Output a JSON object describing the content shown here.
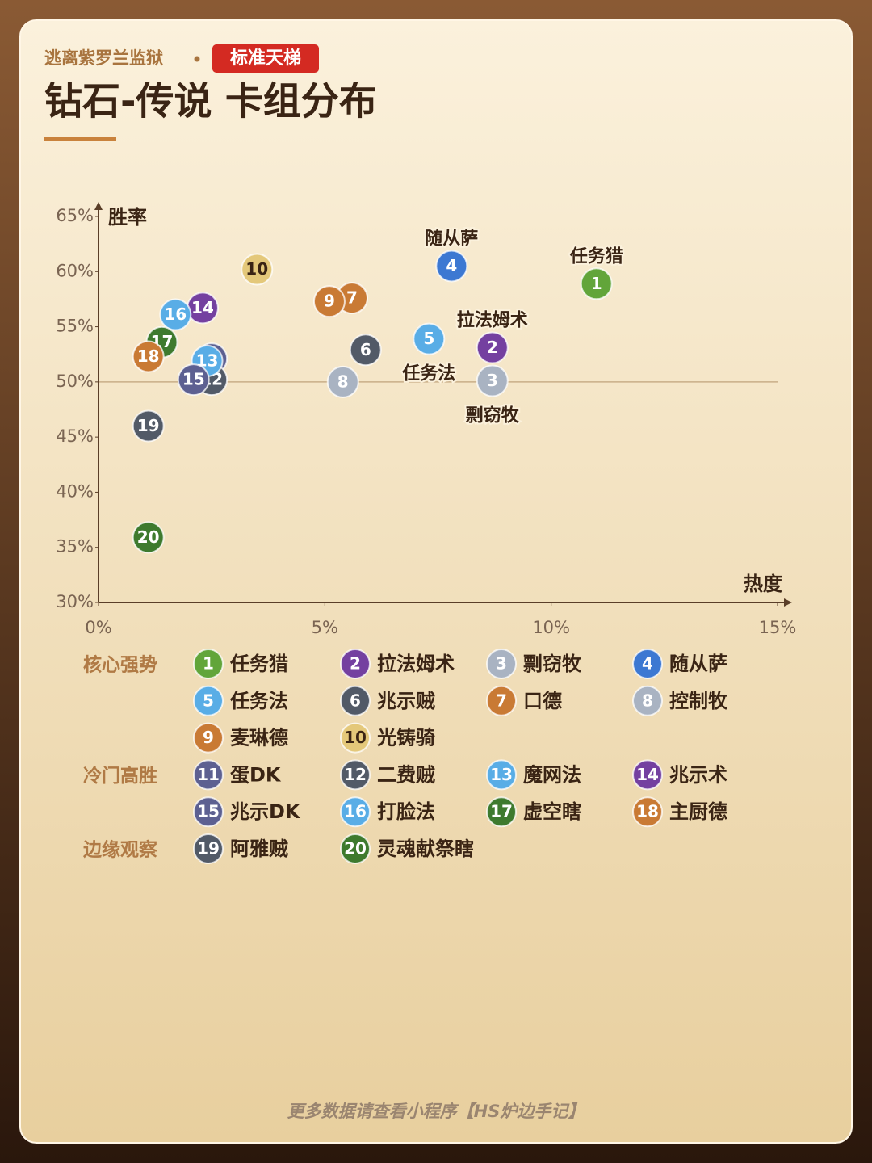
{
  "header": {
    "subtitle": "逃离紫罗兰监狱",
    "badge": "标准天梯",
    "title": "钻石-传说 卡组分布"
  },
  "footer": "更多数据请查看小程序【HS炉边手记】",
  "chart_data": {
    "type": "scatter",
    "xlabel": "热度",
    "ylabel": "胜率",
    "xlim": [
      0,
      15
    ],
    "ylim": [
      30,
      65
    ],
    "xticks": [
      {
        "value": 0,
        "label": "0%"
      },
      {
        "value": 5,
        "label": "5%"
      },
      {
        "value": 10,
        "label": "10%"
      },
      {
        "value": 15,
        "label": "15%"
      }
    ],
    "yticks": [
      {
        "value": 30,
        "label": "30%"
      },
      {
        "value": 35,
        "label": "35%"
      },
      {
        "value": 40,
        "label": "40%"
      },
      {
        "value": 45,
        "label": "45%"
      },
      {
        "value": 50,
        "label": "50%"
      },
      {
        "value": 55,
        "label": "55%"
      },
      {
        "value": 60,
        "label": "60%"
      },
      {
        "value": 65,
        "label": "65%"
      }
    ],
    "reference_line": 50,
    "groups": [
      {
        "name": "核心强势",
        "points": [
          {
            "id": 1,
            "name": "任务猎",
            "color": "#62a53a",
            "x": 11.0,
            "y": 58.9,
            "annotate": "above"
          },
          {
            "id": 2,
            "name": "拉法姆术",
            "color": "#7440a0",
            "x": 8.7,
            "y": 53.1,
            "annotate": "above"
          },
          {
            "id": 3,
            "name": "剽窃牧",
            "color": "#a9b3c2",
            "x": 8.7,
            "y": 50.1,
            "annotate": "below"
          },
          {
            "id": 4,
            "name": "随从萨",
            "color": "#3c78d2",
            "x": 7.8,
            "y": 60.5,
            "annotate": "above"
          },
          {
            "id": 5,
            "name": "任务法",
            "color": "#59ade6",
            "x": 7.3,
            "y": 53.9,
            "annotate": "below"
          },
          {
            "id": 6,
            "name": "兆示贼",
            "color": "#525a67",
            "x": 5.9,
            "y": 52.9
          },
          {
            "id": 7,
            "name": "口德",
            "color": "#c97a34",
            "x": 5.6,
            "y": 57.6
          },
          {
            "id": 8,
            "name": "控制牧",
            "color": "#a9b3c2",
            "x": 5.4,
            "y": 50.0
          },
          {
            "id": 9,
            "name": "麦琳德",
            "color": "#c97a34",
            "x": 5.1,
            "y": 57.3
          },
          {
            "id": 10,
            "name": "光铸骑",
            "color": "#e4c87a",
            "x": 3.5,
            "y": 60.2
          }
        ]
      },
      {
        "name": "冷门高胜",
        "points": [
          {
            "id": 11,
            "name": "蛋DK",
            "color": "#5d6091",
            "x": 2.5,
            "y": 52.1
          },
          {
            "id": 12,
            "name": "二费贼",
            "color": "#525a67",
            "x": 2.5,
            "y": 50.2
          },
          {
            "id": 13,
            "name": "魔网法",
            "color": "#59ade6",
            "x": 2.4,
            "y": 51.9
          },
          {
            "id": 14,
            "name": "兆示术",
            "color": "#7440a0",
            "x": 2.3,
            "y": 56.7
          },
          {
            "id": 15,
            "name": "兆示DK",
            "color": "#5d6091",
            "x": 2.1,
            "y": 50.2
          },
          {
            "id": 16,
            "name": "打脸法",
            "color": "#59ade6",
            "x": 1.7,
            "y": 56.1
          },
          {
            "id": 17,
            "name": "虚空瞎",
            "color": "#3e7a2e",
            "x": 1.4,
            "y": 53.6
          },
          {
            "id": 18,
            "name": "主厨德",
            "color": "#c97a34",
            "x": 1.1,
            "y": 52.3
          }
        ]
      },
      {
        "name": "边缘观察",
        "points": [
          {
            "id": 19,
            "name": "阿雅贼",
            "color": "#525a67",
            "x": 1.1,
            "y": 46.0
          },
          {
            "id": 20,
            "name": "灵魂献祭瞎",
            "color": "#3e7a2e",
            "x": 1.1,
            "y": 35.9
          }
        ]
      }
    ]
  }
}
